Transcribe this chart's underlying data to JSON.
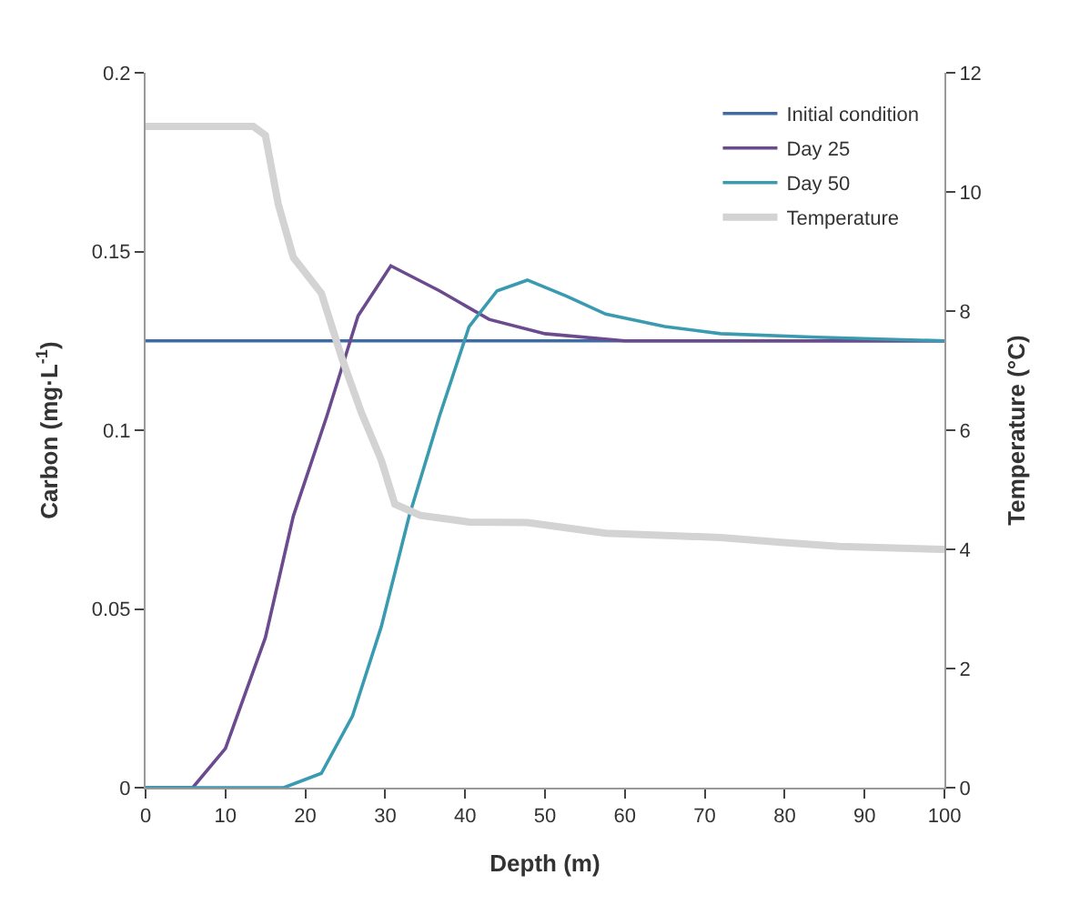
{
  "chart_data": {
    "type": "line",
    "xlabel": "Depth (m)",
    "ylabel": "Carbon (mg·L$^{-1}$)",
    "y2label": "Temperature (°C)",
    "xlim": [
      0,
      100
    ],
    "xticks": [
      0,
      10,
      20,
      30,
      40,
      50,
      60,
      70,
      80,
      90,
      100
    ],
    "ylim": [
      0,
      0.2
    ],
    "yticks": [
      0,
      0.05,
      0.1,
      0.15,
      0.2
    ],
    "y2lim": [
      0,
      12
    ],
    "y2ticks": [
      0,
      2,
      4,
      6,
      8,
      10,
      12
    ],
    "legend": "top right",
    "marker": "none",
    "line_style": "solid",
    "series": [
      {
        "name": "Initial condition",
        "color": "#3d6ba6",
        "x": [
          0,
          100
        ],
        "values": [
          0.125,
          0.125
        ]
      },
      {
        "name": "Day 25",
        "color": "#6b4a8e",
        "x": [
          0,
          5.9,
          10,
          15,
          18.5,
          22.7,
          26.6,
          30.7,
          36.8,
          43,
          50,
          60,
          100
        ],
        "values": [
          0,
          0,
          0.011,
          0.042,
          0.076,
          0.104,
          0.132,
          0.146,
          0.139,
          0.131,
          0.127,
          0.125,
          0.125
        ]
      },
      {
        "name": "Day 50",
        "color": "#3a9bb0",
        "x": [
          0,
          17.3,
          22,
          25.9,
          29.5,
          33,
          36.8,
          40.5,
          44,
          47.8,
          52.7,
          57.6,
          65,
          72,
          84,
          100
        ],
        "values": [
          0,
          0,
          0.004,
          0.02,
          0.045,
          0.076,
          0.104,
          0.129,
          0.139,
          0.142,
          0.1375,
          0.1325,
          0.129,
          0.127,
          0.126,
          0.125
        ]
      },
      {
        "name": "Temperature",
        "color": "#d3d3d3",
        "axis": "y2",
        "x": [
          0,
          13.5,
          15,
          16.6,
          18.5,
          22,
          24.6,
          27,
          29.5,
          31.2,
          34.4,
          40.5,
          47.8,
          57.6,
          72,
          79.5,
          86.8,
          100
        ],
        "values": [
          11.1,
          11.1,
          10.95,
          9.8,
          8.9,
          8.3,
          7.2,
          6.3,
          5.5,
          4.76,
          4.57,
          4.46,
          4.45,
          4.27,
          4.2,
          4.12,
          4.05,
          4.0
        ]
      }
    ]
  }
}
